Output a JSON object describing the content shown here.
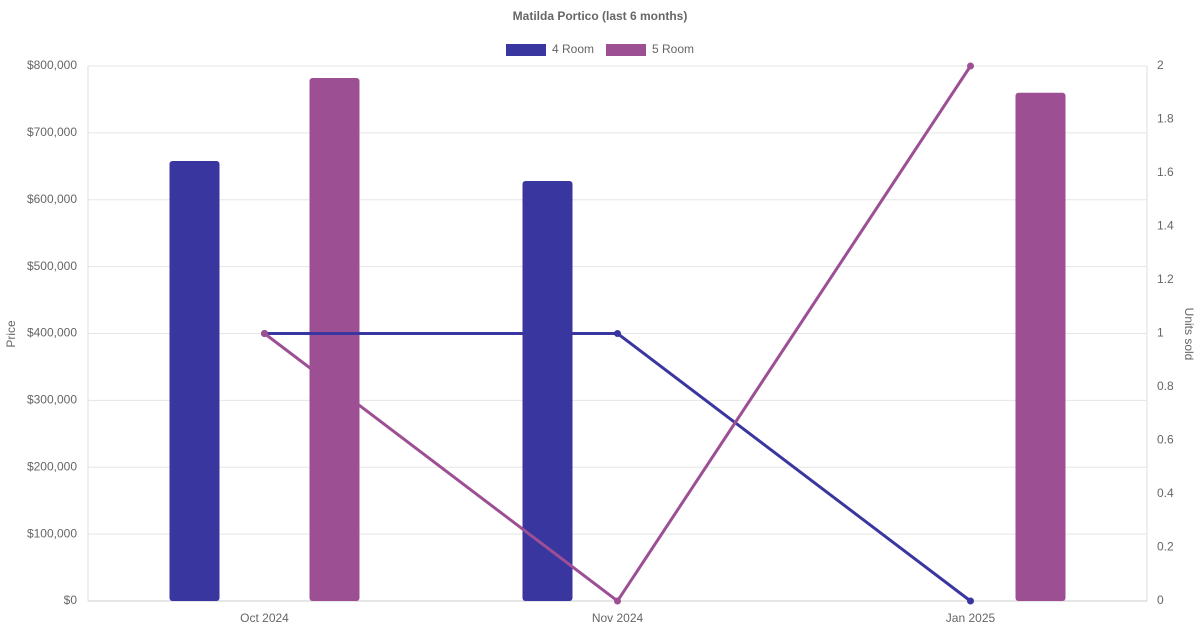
{
  "chart_data": {
    "type": "bar-line",
    "title": "Matilda Portico (last 6 months)",
    "y_label": "Price",
    "y2_label": "Units sold",
    "categories": [
      "Oct 2024",
      "Nov 2024",
      "Jan 2025"
    ],
    "series": [
      {
        "name": "4 Room",
        "color": "#3a36a0",
        "values": [
          658000,
          628000,
          null
        ],
        "y2_values": [
          1,
          1,
          0
        ]
      },
      {
        "name": "5 Room",
        "color": "#9d4f94",
        "values": [
          782000,
          null,
          760000
        ],
        "y2_values": [
          1,
          0,
          2
        ]
      }
    ],
    "ylim": [
      0,
      800000
    ],
    "yticks": [
      {
        "value": 0,
        "label": "$0"
      },
      {
        "value": 100000,
        "label": "$100,000"
      },
      {
        "value": 200000,
        "label": "$200,000"
      },
      {
        "value": 300000,
        "label": "$300,000"
      },
      {
        "value": 400000,
        "label": "$400,000"
      },
      {
        "value": 500000,
        "label": "$500,000"
      },
      {
        "value": 600000,
        "label": "$600,000"
      },
      {
        "value": 700000,
        "label": "$700,000"
      },
      {
        "value": 800000,
        "label": "$800,000"
      }
    ],
    "y2lim": [
      0,
      2
    ],
    "y2ticks": [
      0,
      0.2,
      0.4,
      0.6,
      0.8,
      1,
      1.2,
      1.4,
      1.6,
      1.8,
      2
    ],
    "grid": true
  }
}
